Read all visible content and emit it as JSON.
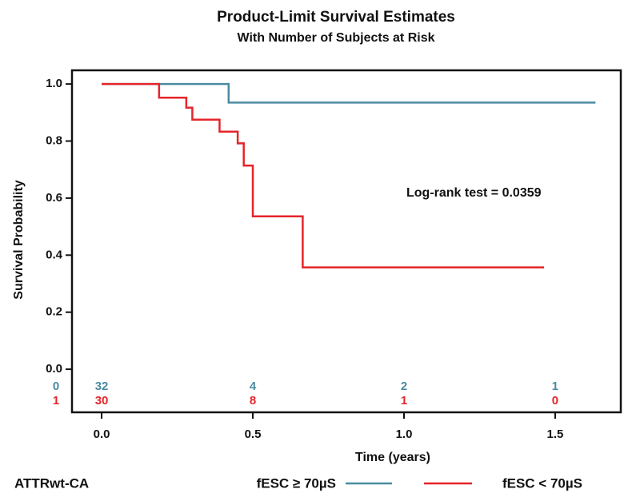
{
  "chart_data": {
    "type": "step",
    "title": "Product-Limit Survival Estimates",
    "subtitle": "With Number of Subjects at Risk",
    "x_label": "Time (years)",
    "y_label": "Survival Probability",
    "xlim": [
      -0.098,
      1.717
    ],
    "ylim": [
      -0.151,
      1.048
    ],
    "xticks": [
      {
        "value": 0,
        "label": "0.0"
      },
      0.5,
      {
        "value": 1,
        "label": "1.0"
      },
      1.5
    ],
    "yticks": [
      {
        "value": 0,
        "label": "0.0"
      },
      0.2,
      0.4,
      0.6,
      0.8,
      {
        "value": 1,
        "label": "1.0"
      }
    ],
    "annotation": "Log-rank test = 0.0359",
    "legend_title": "ATTRwt-CA",
    "series": [
      {
        "name": "fESC ≥ 70µS",
        "color": "#4a8ba2",
        "x": [
          0,
          0.42,
          1.63
        ],
        "values": [
          1,
          0.935,
          0.935
        ]
      },
      {
        "name": "fESC < 70µS",
        "color": "#e5252a",
        "x": [
          0,
          0.19,
          0.28,
          0.3,
          0.39,
          0.45,
          0.47,
          0.5,
          0.665,
          1.46
        ],
        "values": [
          1,
          0.952,
          0.917,
          0.875,
          0.833,
          0.792,
          0.714,
          0.536,
          0.357,
          0.357
        ]
      }
    ],
    "at_risk": {
      "x": [
        0,
        0.5,
        1,
        1.5
      ],
      "rows": [
        {
          "label": "0",
          "color": "#4a8ba2",
          "values": [
            32,
            4,
            2,
            1
          ]
        },
        {
          "label": "1",
          "color": "#e5252a",
          "values": [
            30,
            8,
            1,
            0
          ]
        }
      ]
    }
  }
}
